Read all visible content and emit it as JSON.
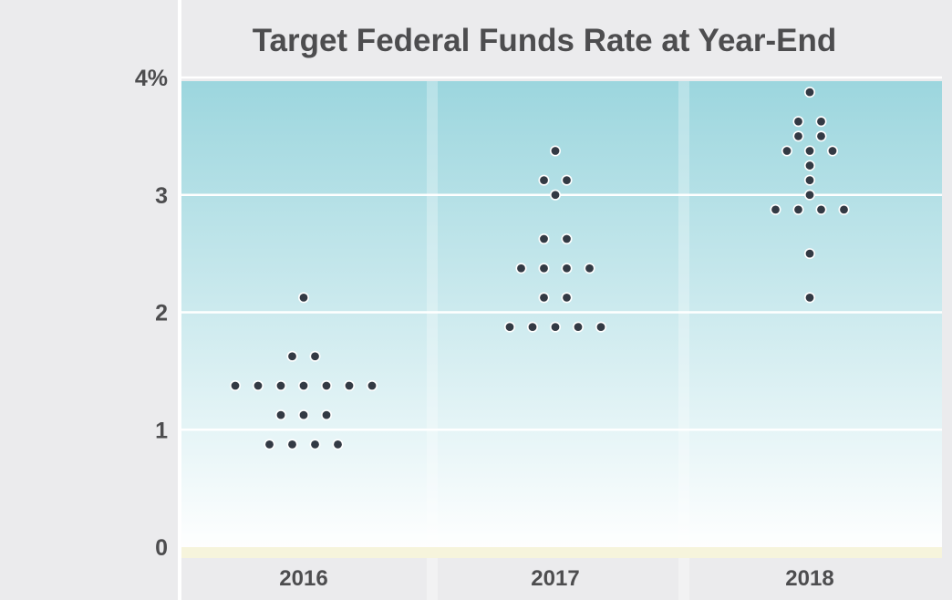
{
  "chart_data": {
    "type": "scatter",
    "title": "Target Federal Funds Rate at Year-End",
    "xlabel": "",
    "ylabel": "",
    "categories": [
      "2016",
      "2017",
      "2018"
    ],
    "y_tick_labels": [
      "0",
      "1",
      "2",
      "3",
      "4%"
    ],
    "y_ticks": [
      0,
      1,
      2,
      3,
      4
    ],
    "ylim": [
      0,
      4
    ],
    "grid": true,
    "legend": "none",
    "series": [
      {
        "category": "2016",
        "rows": [
          {
            "y": 2.125,
            "count": 1
          },
          {
            "y": 1.625,
            "count": 2
          },
          {
            "y": 1.375,
            "count": 7
          },
          {
            "y": 1.125,
            "count": 3
          },
          {
            "y": 0.875,
            "count": 4
          }
        ]
      },
      {
        "category": "2017",
        "rows": [
          {
            "y": 3.375,
            "count": 1
          },
          {
            "y": 3.125,
            "count": 2
          },
          {
            "y": 3.0,
            "count": 1
          },
          {
            "y": 2.625,
            "count": 2
          },
          {
            "y": 2.375,
            "count": 4
          },
          {
            "y": 2.125,
            "count": 2
          },
          {
            "y": 1.875,
            "count": 5
          }
        ]
      },
      {
        "category": "2018",
        "rows": [
          {
            "y": 3.875,
            "count": 1
          },
          {
            "y": 3.625,
            "count": 2
          },
          {
            "y": 3.5,
            "count": 2
          },
          {
            "y": 3.375,
            "count": 3
          },
          {
            "y": 3.25,
            "count": 1
          },
          {
            "y": 3.125,
            "count": 1
          },
          {
            "y": 3.0,
            "count": 1
          },
          {
            "y": 2.875,
            "count": 4
          },
          {
            "y": 2.5,
            "count": 1
          },
          {
            "y": 2.125,
            "count": 1
          }
        ]
      }
    ],
    "colors": {
      "dot": "#333a44",
      "dot_outline": "#ffffff",
      "gradient_top": "#9cd6de",
      "gradient_bottom": "#ffffff",
      "gridline": "#ffffff",
      "text": "#4d4d4f",
      "background": "#ebebed",
      "baseline": "#f6f4dc"
    }
  }
}
